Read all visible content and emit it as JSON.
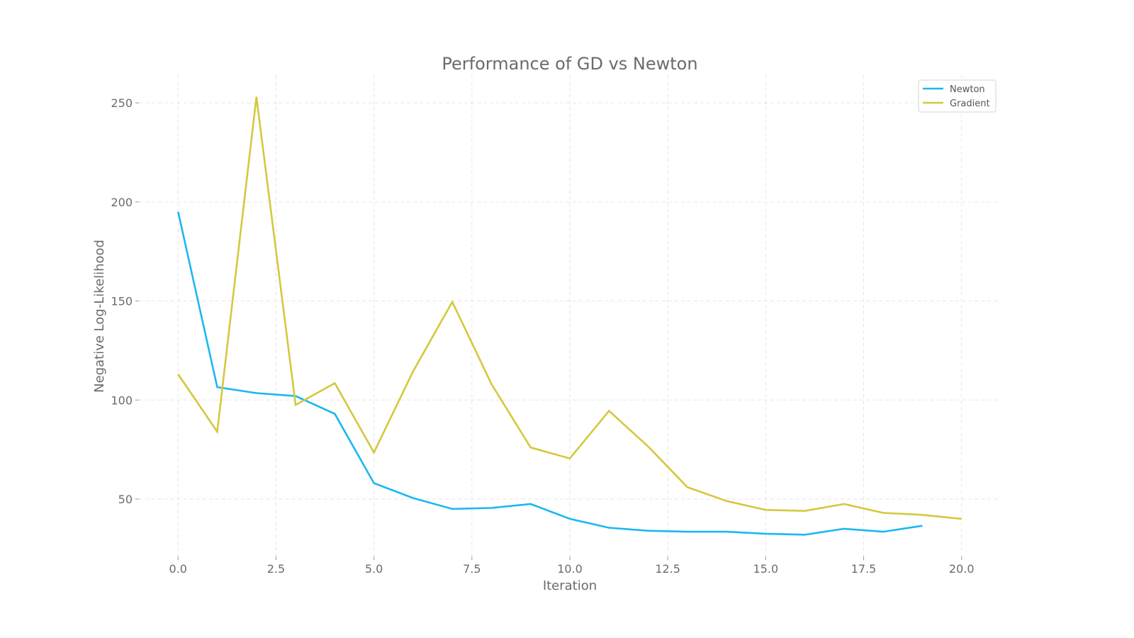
{
  "chart_data": {
    "type": "line",
    "title": "Performance of GD vs Newton",
    "xlabel": "Iteration",
    "ylabel": "Negative Log-Likelihood",
    "xlim": [
      -1.0,
      21.0
    ],
    "ylim": [
      21.0,
      264.0
    ],
    "xticks": [
      0.0,
      2.5,
      5.0,
      7.5,
      10.0,
      12.5,
      15.0,
      17.5,
      20.0
    ],
    "xtick_labels": [
      "0.0",
      "2.5",
      "5.0",
      "7.5",
      "10.0",
      "12.5",
      "15.0",
      "17.5",
      "20.0"
    ],
    "yticks": [
      50,
      100,
      150,
      200,
      250
    ],
    "ytick_labels": [
      "50",
      "100",
      "150",
      "200",
      "250"
    ],
    "grid": true,
    "legend_position": "top-right",
    "series": [
      {
        "name": "Newton",
        "color": "#1ab8f0",
        "x": [
          0,
          1,
          2,
          3,
          4,
          5,
          6,
          7,
          8,
          9,
          10,
          11,
          12,
          13,
          14,
          15,
          16,
          17,
          18,
          19
        ],
        "values": [
          195,
          106.5,
          103.5,
          102,
          93,
          58,
          50.5,
          45,
          45.5,
          47.5,
          40,
          35.5,
          34,
          33.5,
          33.5,
          32.5,
          32,
          35,
          33.5,
          36.5
        ]
      },
      {
        "name": "Gradient",
        "color": "#d4c83c",
        "x": [
          0,
          1,
          2,
          3,
          4,
          5,
          6,
          7,
          8,
          9,
          10,
          11,
          12,
          13,
          14,
          15,
          16,
          17,
          18,
          19,
          20
        ],
        "values": [
          113,
          84,
          253,
          97.5,
          108.5,
          73.5,
          114.5,
          149.5,
          108,
          76,
          70.5,
          94.5,
          76.5,
          56,
          49,
          44.5,
          44,
          47.5,
          43,
          42,
          40
        ]
      }
    ]
  }
}
